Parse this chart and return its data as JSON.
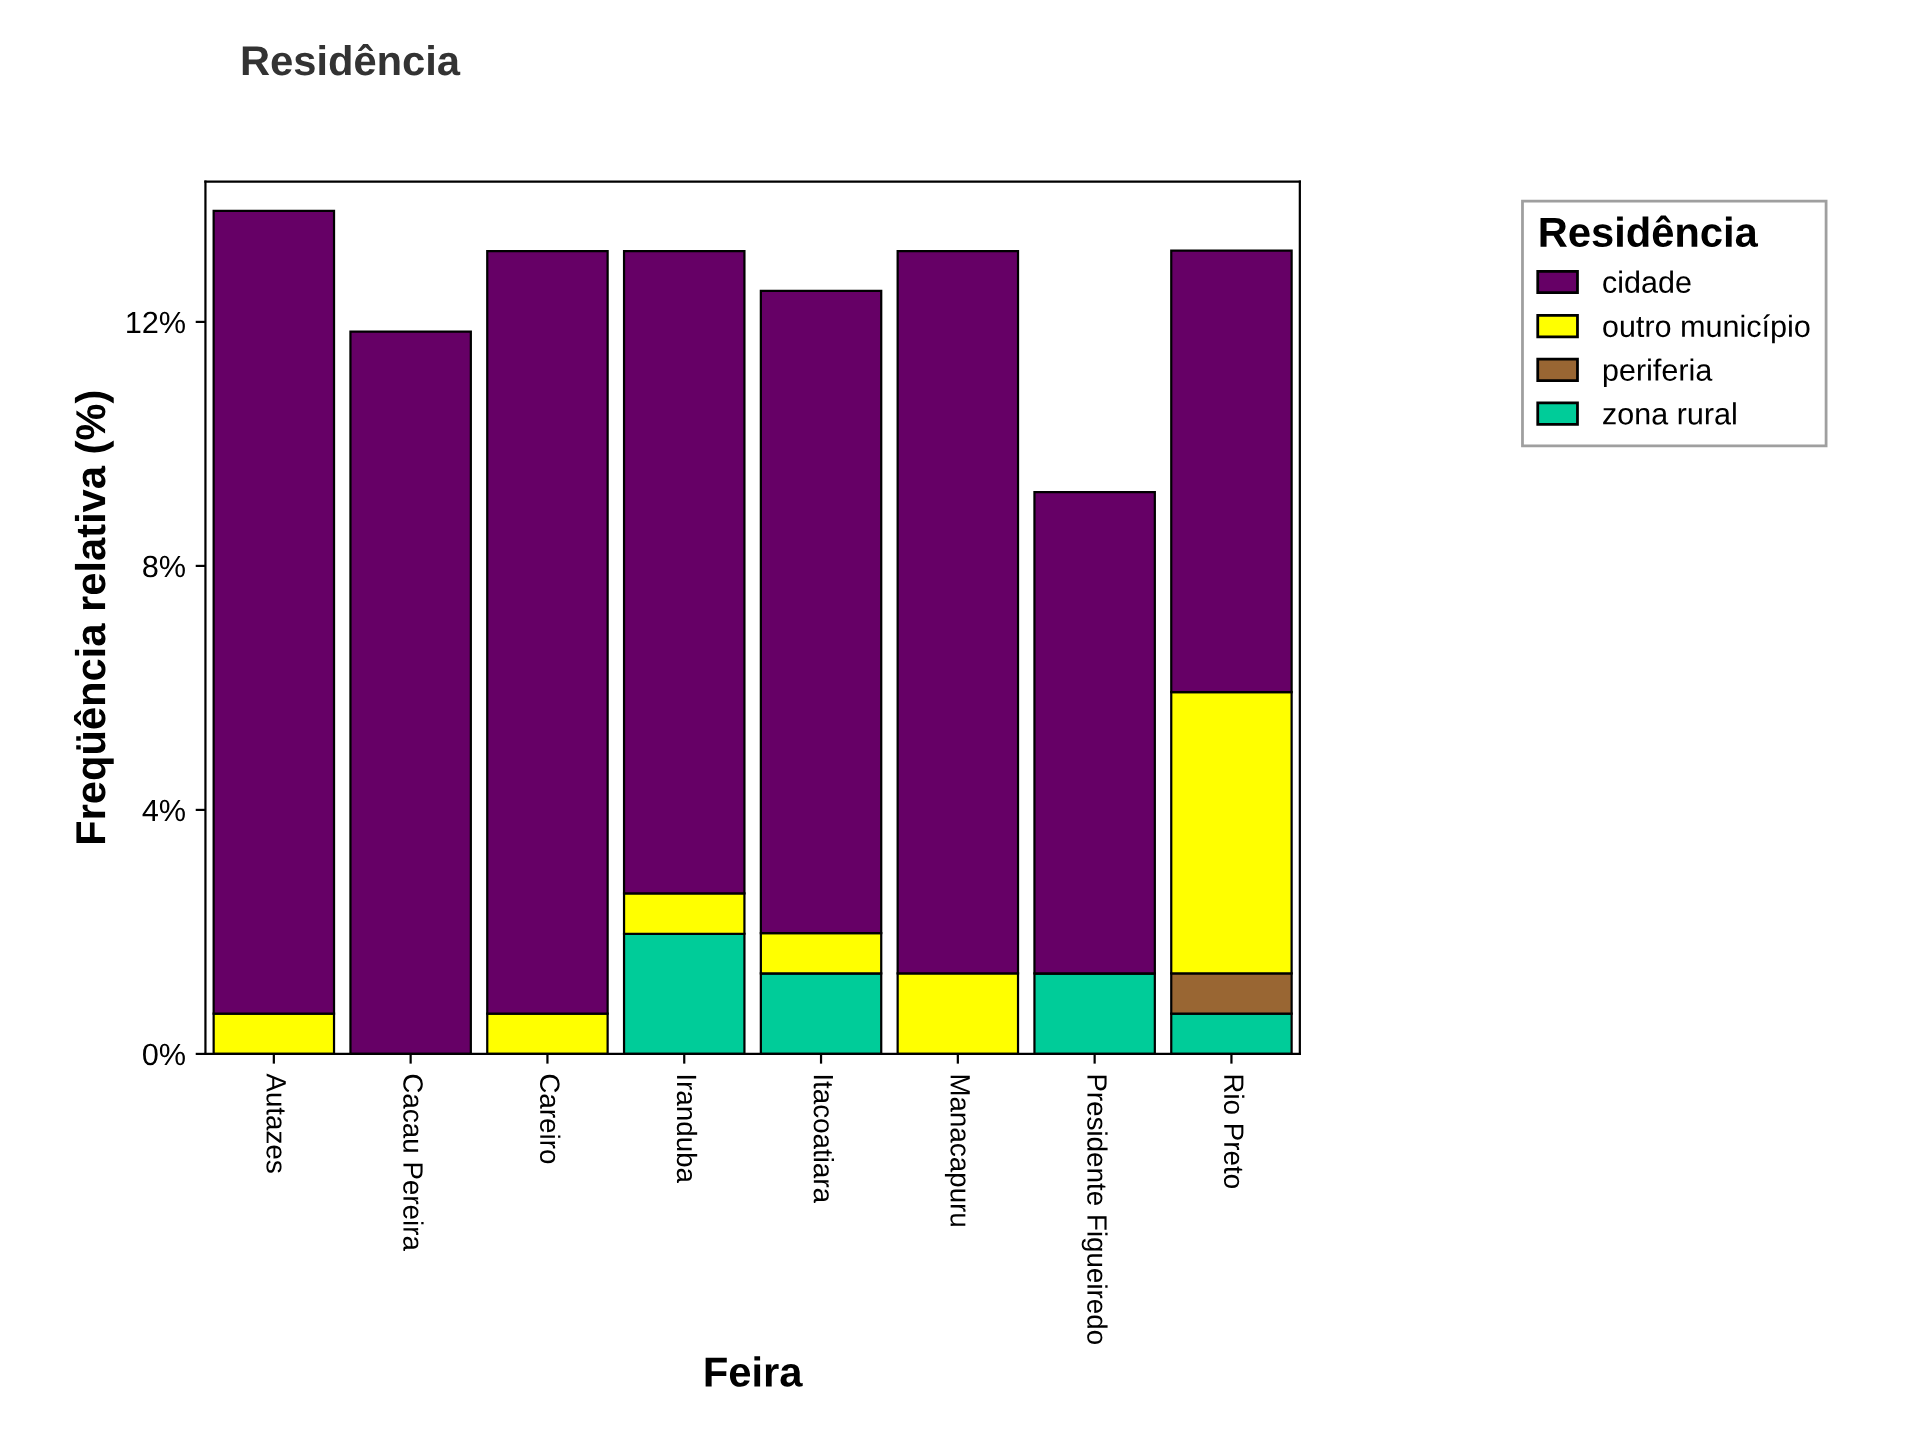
{
  "chart_data": {
    "type": "bar",
    "title": "Residência",
    "xlabel": "Feira",
    "ylabel": "Freqüência relativa (%)",
    "legend_title": "Residência",
    "categories": [
      "Autazes",
      "Cacau Pereira",
      "Careiro",
      "Iranduba",
      "Itacoatiara",
      "Manacapuru",
      "Presidente Figueiredo",
      "Rio Preto"
    ],
    "stacked": true,
    "series": [
      {
        "name": "zona rural",
        "color": "#00cc99",
        "values": [
          0,
          0,
          0,
          1.97,
          1.32,
          0,
          1.32,
          0.66
        ]
      },
      {
        "name": "periferia",
        "color": "#996633",
        "values": [
          0,
          0,
          0,
          0,
          0,
          0,
          0,
          0.66
        ]
      },
      {
        "name": "outro município",
        "color": "#ffff00",
        "values": [
          0.66,
          0,
          0.66,
          0.66,
          0.66,
          1.32,
          0,
          4.61
        ]
      },
      {
        "name": "cidade",
        "color": "#660066",
        "values": [
          13.16,
          11.84,
          12.5,
          10.53,
          10.53,
          11.84,
          7.89,
          7.24
        ]
      }
    ],
    "ylim": [
      0,
      14.3
    ],
    "yticks": [
      {
        "value": 0,
        "label": "0%"
      },
      {
        "value": 4,
        "label": "4%"
      },
      {
        "value": 8,
        "label": "8%"
      },
      {
        "value": 12,
        "label": "12%"
      }
    ],
    "grid": false,
    "legend": "top right"
  }
}
